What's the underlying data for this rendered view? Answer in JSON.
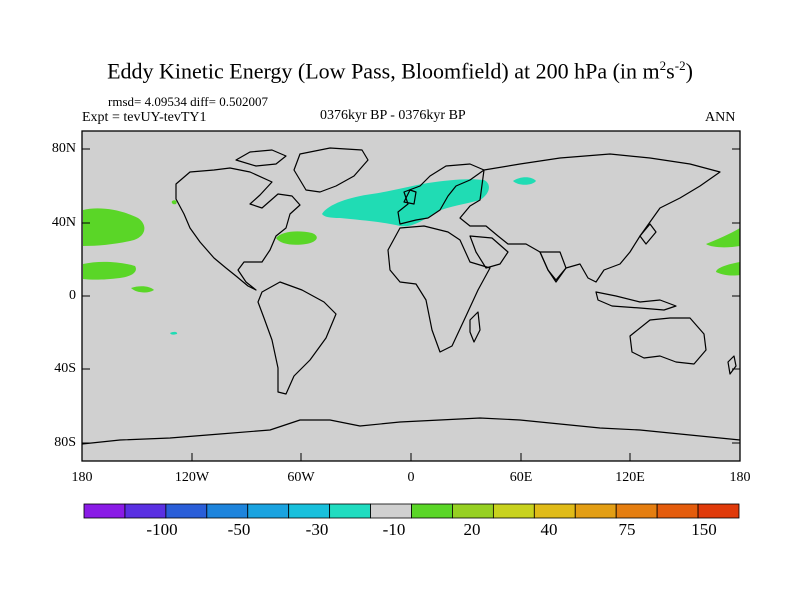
{
  "title": {
    "prefix": "Eddy Kinetic Energy (Low Pass, Bloomfield) at 200 hPa (in m",
    "sup1": "2",
    "mid": "s",
    "sup2": "-2",
    "suffix": ")"
  },
  "stats": "rmsd= 4.09534 diff= 0.502007",
  "expt": "Expt = tevUY-tevTY1",
  "period": "0376kyr BP - 0376kyr BP",
  "season": "ANN",
  "map": {
    "lon_ticks": [
      "180",
      "120W",
      "60W",
      "0",
      "60E",
      "120E",
      "180"
    ],
    "lat_ticks": [
      "80N",
      "40N",
      "0",
      "40S",
      "80S"
    ],
    "land_color": "#d0d0d0",
    "anomalies": [
      {
        "name": "north-atlantic-europe-negative",
        "sign": "negative",
        "color": "#20dcb4",
        "region": "North Atlantic to Scandinavia"
      },
      {
        "name": "barents-negative",
        "sign": "negative",
        "color": "#20dcb4",
        "region": "Barents Sea"
      },
      {
        "name": "east-pacific-positive",
        "sign": "positive",
        "color": "#5ad627",
        "region": "East Pacific 40N"
      },
      {
        "name": "east-pacific-tropical-positive",
        "sign": "positive",
        "color": "#5ad627",
        "region": "East Pacific 15N"
      },
      {
        "name": "west-atlantic-positive",
        "sign": "positive",
        "color": "#5ad627",
        "region": "West Atlantic 35N"
      },
      {
        "name": "west-pacific-positive",
        "sign": "positive",
        "color": "#5ad627",
        "region": "West Pacific 35N"
      },
      {
        "name": "west-pacific-tropical-positive",
        "sign": "positive",
        "color": "#5ad627",
        "region": "West Pacific 15N"
      }
    ]
  },
  "colorbar": {
    "colors": [
      "#8a1be6",
      "#5a30e2",
      "#2a5ed8",
      "#1d84dc",
      "#1aa3e0",
      "#18c0dc",
      "#20dcc0",
      "#d0d0d0",
      "#5ad627",
      "#96d022",
      "#c8d21e",
      "#e0bb18",
      "#e39e14",
      "#e57e10",
      "#e45c0c",
      "#e03a0a"
    ],
    "labels": [
      "-100",
      "-50",
      "-30",
      "-10",
      "20",
      "40",
      "75",
      "150"
    ]
  }
}
